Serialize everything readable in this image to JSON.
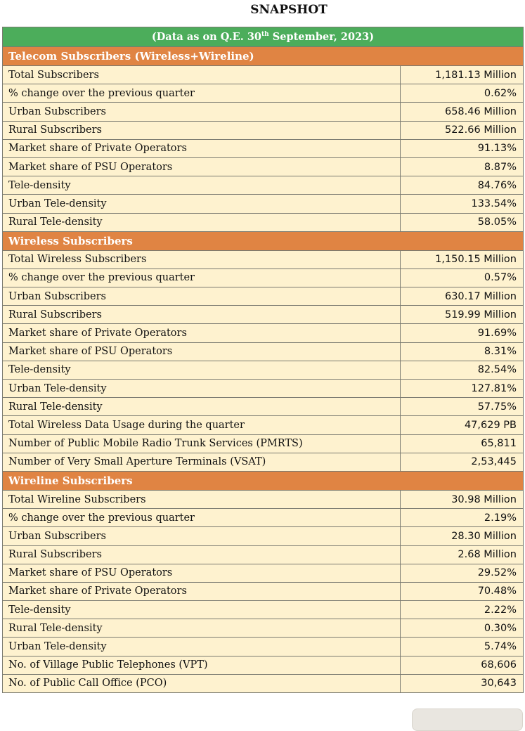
{
  "title": "SNAPSHOT",
  "date_header": {
    "prefix": "(Data as on Q.E. 30",
    "sup": "th",
    "suffix": " September, 2023)"
  },
  "sections": [
    {
      "heading": "Telecom Subscribers (Wireless+Wireline)",
      "rows": [
        [
          "Total Subscribers",
          "1,181.13 Million"
        ],
        [
          "% change over the previous quarter",
          "0.62%"
        ],
        [
          "Urban Subscribers",
          "658.46 Million"
        ],
        [
          "Rural Subscribers",
          "522.66 Million"
        ],
        [
          "Market share of Private Operators",
          "91.13%"
        ],
        [
          "Market share of PSU Operators",
          "8.87%"
        ],
        [
          "Tele-density",
          "84.76%"
        ],
        [
          "Urban Tele-density",
          "133.54%"
        ],
        [
          "Rural Tele-density",
          "58.05%"
        ]
      ]
    },
    {
      "heading": "Wireless Subscribers",
      "rows": [
        [
          "Total Wireless Subscribers",
          "1,150.15 Million"
        ],
        [
          "% change over the previous quarter",
          "0.57%"
        ],
        [
          "Urban Subscribers",
          "630.17 Million"
        ],
        [
          "Rural Subscribers",
          "519.99 Million"
        ],
        [
          "Market share of Private Operators",
          "91.69%"
        ],
        [
          "Market share of PSU Operators",
          "8.31%"
        ],
        [
          "Tele-density",
          "82.54%"
        ],
        [
          "Urban Tele-density",
          "127.81%"
        ],
        [
          "Rural Tele-density",
          "57.75%"
        ],
        [
          "Total Wireless Data Usage during the quarter",
          "47,629 PB"
        ],
        [
          "Number of Public Mobile Radio Trunk Services (PMRTS)",
          "65,811"
        ],
        [
          "Number of Very Small Aperture Terminals (VSAT)",
          "2,53,445"
        ]
      ]
    },
    {
      "heading": "Wireline Subscribers",
      "rows": [
        [
          "Total Wireline Subscribers",
          "30.98 Million"
        ],
        [
          "% change over the previous quarter",
          "2.19%"
        ],
        [
          "Urban Subscribers",
          "28.30 Million"
        ],
        [
          "Rural Subscribers",
          "2.68 Million"
        ],
        [
          "Market share of PSU Operators",
          "29.52%"
        ],
        [
          "Market share of Private Operators",
          "70.48%"
        ],
        [
          "Tele-density",
          "2.22%"
        ],
        [
          "Rural Tele-density",
          "0.30%"
        ],
        [
          "Urban Tele-density",
          "5.74%"
        ],
        [
          "No. of Village Public Telephones (VPT)",
          "68,606"
        ],
        [
          "No. of Public Call Office (PCO)",
          "30,643"
        ]
      ]
    }
  ],
  "colors": {
    "header_green": "#4CAD5B",
    "section_orange": "#E08443",
    "row_cream": "#FEF2CF"
  }
}
